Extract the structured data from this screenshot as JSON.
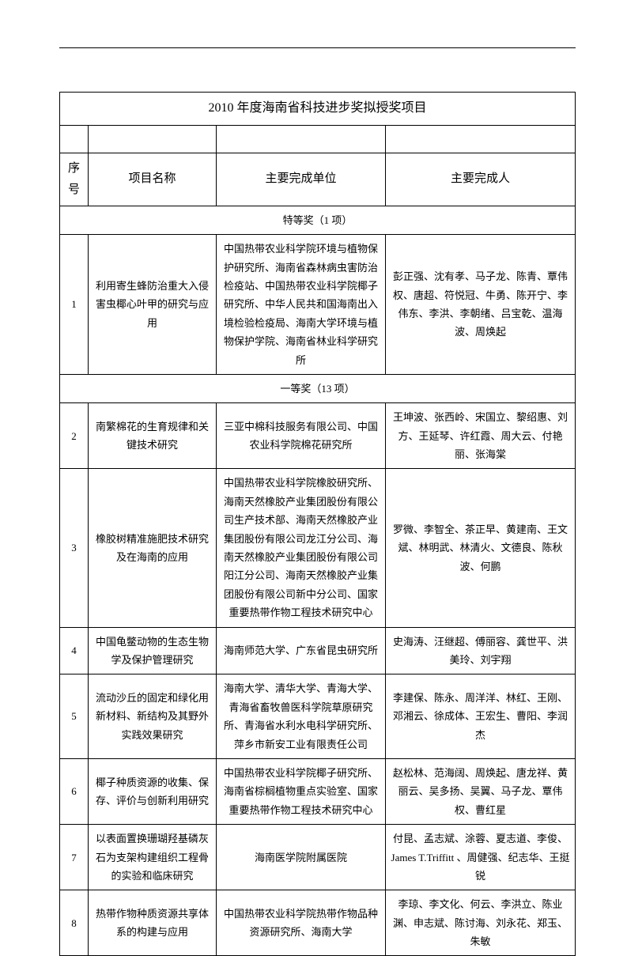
{
  "title": "2010 年度海南省科技进步奖拟授奖项目",
  "headers": {
    "idx": "序号",
    "name": "项目名称",
    "unit": "主要完成单位",
    "ppl": "主要完成人"
  },
  "section1": "特等奖（1 项）",
  "section2": "一等奖（13 项）",
  "rows": [
    {
      "idx": "1",
      "name": "利用寄生蜂防治重大入侵害虫椰心叶甲的研究与应用",
      "unit": "中国热带农业科学院环境与植物保护研究所、海南省森林病虫害防治检疫站、中国热带农业科学院椰子研究所、中华人民共和国海南出入境检验检疫局、海南大学环境与植物保护学院、海南省林业科学研究所",
      "ppl": "彭正强、沈有孝、马子龙、陈青、覃伟权、唐超、符悦冠、牛勇、陈开宁、李伟东、李洪、李朝绪、吕宝乾、温海波、周焕起"
    },
    {
      "idx": "2",
      "name": "南繁棉花的生育规律和关键技术研究",
      "unit": "三亚中棉科技服务有限公司、中国农业科学院棉花研究所",
      "ppl": "王坤波、张西岭、宋国立、黎绍惠、刘方、王延琴、许红霞、周大云、付艳丽、张海棠"
    },
    {
      "idx": "3",
      "name": "橡胶树精准施肥技术研究及在海南的应用",
      "unit": "中国热带农业科学院橡胶研究所、海南天然橡胶产业集团股份有限公司生产技术部、海南天然橡胶产业集团股份有限公司龙江分公司、海南天然橡胶产业集团股份有限公司阳江分公司、海南天然橡胶产业集团股份有限公司新中分公司、国家重要热带作物工程技术研究中心",
      "ppl": "罗微、李智全、茶正早、黄建南、王文斌、林明武、林清火、文德良、陈秋波、何鹏"
    },
    {
      "idx": "4",
      "name": "中国龟鳖动物的生态生物学及保护管理研究",
      "unit": "海南师范大学、广东省昆虫研究所",
      "ppl": "史海涛、汪继超、傅丽容、龚世平、洪美玲、刘宇翔"
    },
    {
      "idx": "5",
      "name": "流动沙丘的固定和绿化用新材料、新结构及其野外实践效果研究",
      "unit": "海南大学、清华大学、青海大学、青海省畜牧兽医科学院草原研究所、青海省水利水电科学研究所、萍乡市新安工业有限责任公司",
      "ppl": "李建保、陈永、周洋洋、林红、王刚、邓湘云、徐成体、王宏生、曹阳、李润杰"
    },
    {
      "idx": "6",
      "name": "椰子种质资源的收集、保存、评价与创新利用研究",
      "unit": "中国热带农业科学院椰子研究所、海南省棕榈植物重点实验室、国家重要热带作物工程技术研究中心",
      "ppl": "赵松林、范海阔、周焕起、唐龙祥、黄丽云、吴多扬、吴翼、马子龙、覃伟权、曹红星"
    },
    {
      "idx": "7",
      "name": "以表面置换珊瑚羟基磷灰石为支架构建组织工程骨的实验和临床研究",
      "unit": "海南医学院附属医院",
      "ppl": "付昆、孟志斌、涂蓉、夏志道、李俊、James T.Triffitt 、周健强、纪志华、王挺锐"
    },
    {
      "idx": "8",
      "name": "热带作物种质资源共享体系的构建与应用",
      "unit": "中国热带农业科学院热带作物品种资源研究所、海南大学",
      "ppl": "李琼、李文化、何云、李洪立、陈业渊、申志斌、陈讨海、刘永花、郑玉、朱敏"
    }
  ]
}
